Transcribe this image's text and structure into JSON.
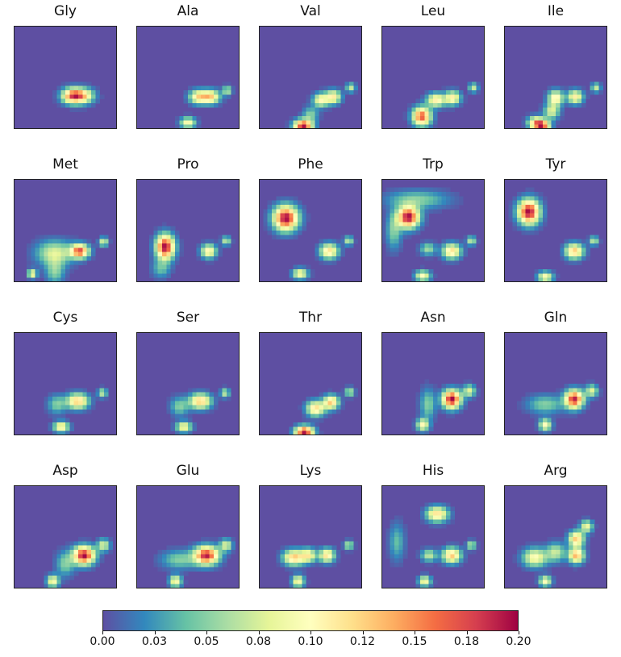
{
  "chart_data": {
    "type": "heatmap",
    "colormap": "Spectral_r",
    "colors": {
      "background": "#5e4fa2",
      "low": "#3288bd",
      "mid": "#ffffbf",
      "high": "#9e0142"
    },
    "grid_size": [
      24,
      24
    ],
    "value_range": [
      0.0,
      0.2
    ],
    "colorbar": {
      "ticks": [
        "0.00",
        "0.03",
        "0.05",
        "0.08",
        "0.10",
        "0.12",
        "0.15",
        "0.18",
        "0.20"
      ],
      "tick_values": [
        0.0,
        0.025,
        0.05,
        0.075,
        0.1,
        0.125,
        0.15,
        0.175,
        0.2
      ]
    },
    "panels": [
      {
        "name": "Gly",
        "blobs": [
          [
            0.57,
            0.32,
            0.07,
            0.05,
            0.16
          ],
          [
            0.68,
            0.32,
            0.07,
            0.05,
            0.1
          ]
        ]
      },
      {
        "name": "Ala",
        "blobs": [
          [
            0.6,
            0.31,
            0.06,
            0.045,
            0.11
          ],
          [
            0.72,
            0.31,
            0.06,
            0.045,
            0.12
          ],
          [
            0.5,
            0.06,
            0.05,
            0.035,
            0.1
          ],
          [
            0.88,
            0.37,
            0.03,
            0.03,
            0.07
          ]
        ]
      },
      {
        "name": "Val",
        "blobs": [
          [
            0.43,
            0.03,
            0.06,
            0.04,
            0.2
          ],
          [
            0.5,
            0.14,
            0.05,
            0.05,
            0.05
          ],
          [
            0.6,
            0.28,
            0.05,
            0.045,
            0.1
          ],
          [
            0.72,
            0.31,
            0.05,
            0.045,
            0.11
          ],
          [
            0.89,
            0.4,
            0.03,
            0.03,
            0.07
          ]
        ]
      },
      {
        "name": "Leu",
        "blobs": [
          [
            0.39,
            0.12,
            0.06,
            0.06,
            0.17
          ],
          [
            0.53,
            0.28,
            0.06,
            0.045,
            0.11
          ],
          [
            0.69,
            0.3,
            0.05,
            0.045,
            0.11
          ],
          [
            0.89,
            0.4,
            0.03,
            0.03,
            0.07
          ]
        ]
      },
      {
        "name": "Ile",
        "blobs": [
          [
            0.3,
            0.06,
            0.05,
            0.04,
            0.11
          ],
          [
            0.37,
            0.03,
            0.05,
            0.04,
            0.17
          ],
          [
            0.46,
            0.17,
            0.05,
            0.05,
            0.08
          ],
          [
            0.5,
            0.3,
            0.05,
            0.05,
            0.11
          ],
          [
            0.69,
            0.31,
            0.05,
            0.045,
            0.11
          ],
          [
            0.89,
            0.4,
            0.03,
            0.03,
            0.07
          ]
        ]
      },
      {
        "name": "Met",
        "blobs": [
          [
            0.4,
            0.28,
            0.12,
            0.08,
            0.08
          ],
          [
            0.64,
            0.3,
            0.06,
            0.045,
            0.17
          ],
          [
            0.4,
            0.1,
            0.06,
            0.08,
            0.05
          ],
          [
            0.18,
            0.08,
            0.03,
            0.03,
            0.1
          ],
          [
            0.87,
            0.39,
            0.03,
            0.03,
            0.08
          ]
        ]
      },
      {
        "name": "Pro",
        "blobs": [
          [
            0.28,
            0.34,
            0.06,
            0.08,
            0.2
          ],
          [
            0.24,
            0.13,
            0.06,
            0.06,
            0.04
          ],
          [
            0.7,
            0.3,
            0.05,
            0.045,
            0.11
          ],
          [
            0.87,
            0.4,
            0.03,
            0.03,
            0.07
          ]
        ]
      },
      {
        "name": "Phe",
        "blobs": [
          [
            0.26,
            0.62,
            0.08,
            0.08,
            0.2
          ],
          [
            0.68,
            0.3,
            0.06,
            0.05,
            0.12
          ],
          [
            0.4,
            0.08,
            0.05,
            0.035,
            0.1
          ],
          [
            0.87,
            0.4,
            0.03,
            0.03,
            0.07
          ]
        ]
      },
      {
        "name": "Trp",
        "blobs": [
          [
            0.26,
            0.63,
            0.07,
            0.07,
            0.2
          ],
          [
            0.35,
            0.8,
            0.2,
            0.06,
            0.05
          ],
          [
            0.12,
            0.5,
            0.05,
            0.12,
            0.05
          ],
          [
            0.68,
            0.3,
            0.06,
            0.05,
            0.12
          ],
          [
            0.45,
            0.32,
            0.05,
            0.04,
            0.06
          ],
          [
            0.4,
            0.06,
            0.05,
            0.035,
            0.1
          ],
          [
            0.87,
            0.4,
            0.03,
            0.03,
            0.07
          ]
        ]
      },
      {
        "name": "Tyr",
        "blobs": [
          [
            0.24,
            0.68,
            0.07,
            0.08,
            0.2
          ],
          [
            0.68,
            0.3,
            0.06,
            0.05,
            0.13
          ],
          [
            0.4,
            0.05,
            0.05,
            0.035,
            0.1
          ],
          [
            0.87,
            0.4,
            0.03,
            0.03,
            0.07
          ]
        ]
      },
      {
        "name": "Cys",
        "blobs": [
          [
            0.62,
            0.33,
            0.07,
            0.05,
            0.13
          ],
          [
            0.42,
            0.3,
            0.06,
            0.06,
            0.05
          ],
          [
            0.46,
            0.08,
            0.05,
            0.035,
            0.11
          ],
          [
            0.86,
            0.41,
            0.03,
            0.03,
            0.07
          ]
        ]
      },
      {
        "name": "Ser",
        "blobs": [
          [
            0.62,
            0.33,
            0.07,
            0.05,
            0.13
          ],
          [
            0.42,
            0.28,
            0.06,
            0.06,
            0.05
          ],
          [
            0.46,
            0.08,
            0.05,
            0.035,
            0.1
          ],
          [
            0.86,
            0.41,
            0.03,
            0.03,
            0.07
          ]
        ]
      },
      {
        "name": "Thr",
        "blobs": [
          [
            0.44,
            0.03,
            0.06,
            0.04,
            0.2
          ],
          [
            0.55,
            0.26,
            0.06,
            0.05,
            0.12
          ],
          [
            0.7,
            0.32,
            0.05,
            0.045,
            0.13
          ],
          [
            0.88,
            0.42,
            0.03,
            0.03,
            0.07
          ]
        ]
      },
      {
        "name": "Asn",
        "blobs": [
          [
            0.68,
            0.35,
            0.06,
            0.06,
            0.2
          ],
          [
            0.45,
            0.3,
            0.05,
            0.1,
            0.05
          ],
          [
            0.4,
            0.1,
            0.04,
            0.04,
            0.1
          ],
          [
            0.85,
            0.43,
            0.04,
            0.04,
            0.08
          ]
        ]
      },
      {
        "name": "Gln",
        "blobs": [
          [
            0.68,
            0.35,
            0.06,
            0.06,
            0.19
          ],
          [
            0.4,
            0.3,
            0.12,
            0.06,
            0.05
          ],
          [
            0.4,
            0.1,
            0.04,
            0.04,
            0.1
          ],
          [
            0.85,
            0.43,
            0.04,
            0.04,
            0.08
          ]
        ]
      },
      {
        "name": "Asp",
        "blobs": [
          [
            0.68,
            0.32,
            0.07,
            0.06,
            0.2
          ],
          [
            0.5,
            0.24,
            0.06,
            0.08,
            0.05
          ],
          [
            0.38,
            0.07,
            0.04,
            0.04,
            0.1
          ],
          [
            0.87,
            0.42,
            0.04,
            0.04,
            0.08
          ]
        ]
      },
      {
        "name": "Glu",
        "blobs": [
          [
            0.68,
            0.32,
            0.08,
            0.06,
            0.19
          ],
          [
            0.42,
            0.28,
            0.12,
            0.06,
            0.05
          ],
          [
            0.38,
            0.07,
            0.04,
            0.04,
            0.1
          ],
          [
            0.87,
            0.42,
            0.04,
            0.04,
            0.08
          ]
        ]
      },
      {
        "name": "Lys",
        "blobs": [
          [
            0.34,
            0.3,
            0.07,
            0.05,
            0.13
          ],
          [
            0.48,
            0.32,
            0.05,
            0.045,
            0.1
          ],
          [
            0.66,
            0.32,
            0.05,
            0.045,
            0.12
          ],
          [
            0.38,
            0.07,
            0.04,
            0.04,
            0.1
          ],
          [
            0.87,
            0.42,
            0.03,
            0.03,
            0.07
          ]
        ]
      },
      {
        "name": "His",
        "blobs": [
          [
            0.54,
            0.72,
            0.07,
            0.05,
            0.12
          ],
          [
            0.68,
            0.32,
            0.06,
            0.05,
            0.13
          ],
          [
            0.46,
            0.32,
            0.05,
            0.04,
            0.07
          ],
          [
            0.15,
            0.45,
            0.05,
            0.12,
            0.04
          ],
          [
            0.42,
            0.07,
            0.04,
            0.035,
            0.1
          ],
          [
            0.87,
            0.42,
            0.03,
            0.03,
            0.07
          ]
        ]
      },
      {
        "name": "Arg",
        "blobs": [
          [
            0.3,
            0.3,
            0.08,
            0.06,
            0.1
          ],
          [
            0.7,
            0.32,
            0.05,
            0.05,
            0.14
          ],
          [
            0.7,
            0.48,
            0.05,
            0.05,
            0.13
          ],
          [
            0.8,
            0.6,
            0.04,
            0.04,
            0.09
          ],
          [
            0.4,
            0.07,
            0.04,
            0.035,
            0.1
          ],
          [
            0.5,
            0.35,
            0.06,
            0.06,
            0.07
          ]
        ]
      }
    ]
  }
}
